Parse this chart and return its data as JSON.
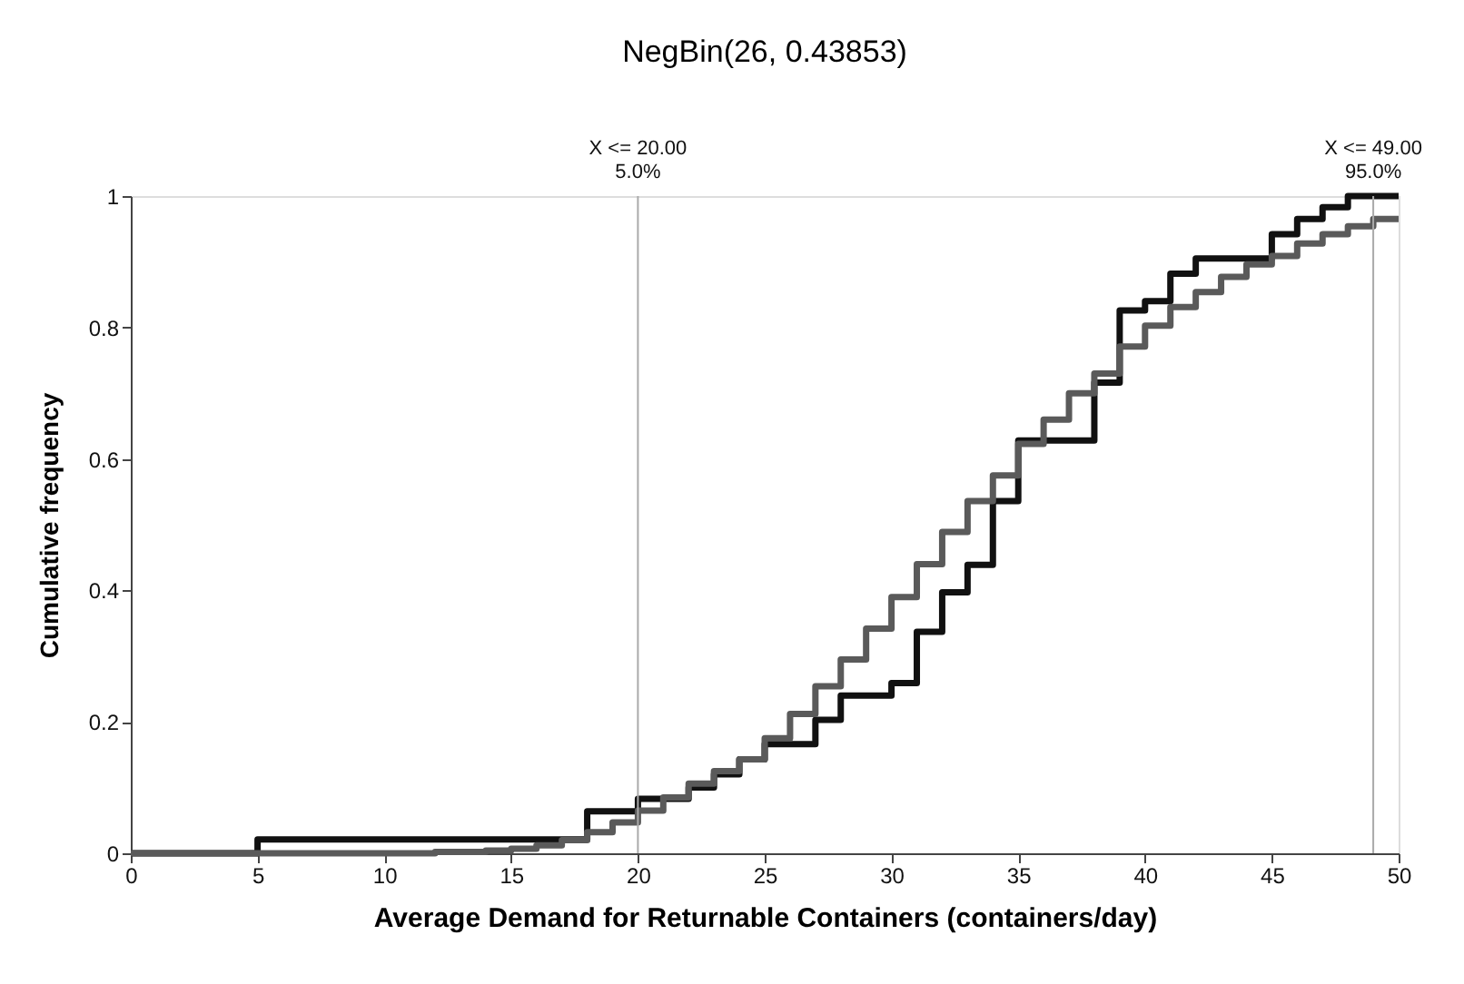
{
  "chart_data": {
    "type": "step",
    "title": "NegBin(26, 0.43853)",
    "xlabel": "Average Demand for Returnable Containers (containers/day)",
    "ylabel": "Cumulative frequency",
    "xlim": [
      0,
      50
    ],
    "xticks": [
      0,
      5,
      10,
      15,
      20,
      25,
      30,
      35,
      40,
      45,
      50
    ],
    "ylim": [
      0,
      1
    ],
    "yticks": [
      0,
      0.2,
      0.4,
      0.6,
      0.8,
      1
    ],
    "grid": false,
    "legend": false,
    "marker": "none",
    "line_style": "solid",
    "series": [
      {
        "color": "#111111",
        "x": [
          0,
          5,
          18,
          20,
          22,
          23,
          24,
          25,
          27,
          28,
          30,
          31,
          32,
          33,
          34,
          35,
          38,
          39,
          40,
          41,
          42,
          45,
          46,
          47,
          48,
          50
        ],
        "values": [
          0,
          0.021,
          0.064,
          0.083,
          0.1,
          0.12,
          0.143,
          0.166,
          0.203,
          0.24,
          0.259,
          0.337,
          0.397,
          0.439,
          0.536,
          0.628,
          0.716,
          0.826,
          0.84,
          0.882,
          0.905,
          0.942,
          0.965,
          0.983,
          1.0,
          1.0
        ]
      },
      {
        "color": "#5a5a5a",
        "x": [
          0,
          12,
          14,
          15,
          16,
          17,
          18,
          19,
          20,
          21,
          22,
          23,
          24,
          25,
          26,
          27,
          28,
          29,
          30,
          31,
          32,
          33,
          34,
          35,
          36,
          37,
          38,
          39,
          40,
          41,
          42,
          43,
          44,
          45,
          46,
          47,
          48,
          49,
          50
        ],
        "values": [
          0,
          0.002,
          0.004,
          0.007,
          0.012,
          0.02,
          0.032,
          0.047,
          0.065,
          0.085,
          0.106,
          0.125,
          0.143,
          0.175,
          0.212,
          0.254,
          0.295,
          0.342,
          0.39,
          0.44,
          0.489,
          0.536,
          0.575,
          0.623,
          0.66,
          0.7,
          0.73,
          0.771,
          0.803,
          0.831,
          0.854,
          0.877,
          0.896,
          0.909,
          0.928,
          0.942,
          0.954,
          0.965,
          0.965
        ]
      }
    ],
    "ref_lines": [
      {
        "axis": "x",
        "value": 20,
        "label": "X <= 20.00\n5.0%",
        "color": "#aaaaaa"
      },
      {
        "axis": "x",
        "value": 49,
        "label": "X <= 49.00\n95.0%",
        "color": "#aaaaaa"
      }
    ]
  }
}
